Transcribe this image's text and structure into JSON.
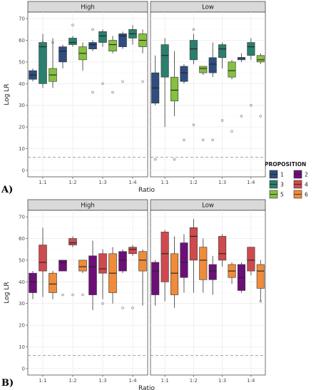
{
  "legend": {
    "title": "PROPOSITION",
    "items": [
      {
        "label": "1",
        "color": "#2f4d80"
      },
      {
        "label": "2",
        "color": "#6d0f78"
      },
      {
        "label": "3",
        "color": "#2a7f6e"
      },
      {
        "label": "4",
        "color": "#cf4a4e"
      },
      {
        "label": "5",
        "color": "#86c03f"
      },
      {
        "label": "6",
        "color": "#ef8b3a"
      }
    ]
  },
  "chart_data": [
    {
      "type": "box",
      "tag": "A)",
      "xlabel": "Ratio",
      "ylabel": "Log LR",
      "ylim": [
        -3,
        73
      ],
      "yticks": [
        0,
        10,
        20,
        30,
        40,
        50,
        60,
        70
      ],
      "categories": [
        "1:1",
        "1:2",
        "1:3",
        "1:4"
      ],
      "reference_line": 6,
      "facets": [
        {
          "label": "High",
          "groups": [
            {
              "category": "1:1",
              "series": "1",
              "min": 41,
              "q1": 42,
              "median": 44,
              "q3": 46,
              "max": 47,
              "outliers": []
            },
            {
              "category": "1:1",
              "series": "3",
              "min": 38,
              "q1": 40,
              "median": 57,
              "q3": 59,
              "max": 63,
              "outliers": [
                59
              ]
            },
            {
              "category": "1:1",
              "series": "5",
              "min": 38,
              "q1": 41,
              "median": 44,
              "q3": 47,
              "max": 61,
              "outliers": [
                59
              ]
            },
            {
              "category": "1:2",
              "series": "1",
              "min": 47,
              "q1": 50,
              "median": 55,
              "q3": 57,
              "max": 58,
              "outliers": []
            },
            {
              "category": "1:2",
              "series": "3",
              "min": 57,
              "q1": 58,
              "median": 59,
              "q3": 61,
              "max": 62,
              "outliers": [
                67
              ]
            },
            {
              "category": "1:2",
              "series": "5",
              "min": 46,
              "q1": 51,
              "median": 54,
              "q3": 57,
              "max": 59,
              "outliers": []
            },
            {
              "category": "1:3",
              "series": "1",
              "min": 55,
              "q1": 56,
              "median": 58,
              "q3": 59,
              "max": 60,
              "outliers": [
                36,
                65
              ]
            },
            {
              "category": "1:3",
              "series": "3",
              "min": 57,
              "q1": 59,
              "median": 62,
              "q3": 64,
              "max": 65,
              "outliers": [
                40
              ]
            },
            {
              "category": "1:3",
              "series": "5",
              "min": 54,
              "q1": 55,
              "median": 58,
              "q3": 60,
              "max": 62,
              "outliers": [
                36
              ]
            },
            {
              "category": "1:4",
              "series": "1",
              "min": 56,
              "q1": 57,
              "median": 62,
              "q3": 63,
              "max": 64,
              "outliers": [
                41
              ]
            },
            {
              "category": "1:4",
              "series": "3",
              "min": 58,
              "q1": 61,
              "median": 63,
              "q3": 65,
              "max": 67,
              "outliers": []
            },
            {
              "category": "1:4",
              "series": "5",
              "min": 54,
              "q1": 57,
              "median": 60,
              "q3": 63,
              "max": 65,
              "outliers": [
                41
              ]
            }
          ]
        },
        {
          "label": "Low",
          "groups": [
            {
              "category": "1:1",
              "series": "1",
              "min": 30,
              "q1": 31,
              "median": 38,
              "q3": 45,
              "max": 53,
              "outliers": [
                5
              ]
            },
            {
              "category": "1:1",
              "series": "3",
              "min": 20,
              "q1": 43,
              "median": 53,
              "q3": 58,
              "max": 61,
              "outliers": []
            },
            {
              "category": "1:1",
              "series": "5",
              "min": 25,
              "q1": 32,
              "median": 37,
              "q3": 43,
              "max": 55,
              "outliers": [
                5
              ]
            },
            {
              "category": "1:2",
              "series": "1",
              "min": 40,
              "q1": 41,
              "median": 45,
              "q3": 48,
              "max": 49,
              "outliers": [
                14
              ]
            },
            {
              "category": "1:2",
              "series": "3",
              "min": 49,
              "q1": 51,
              "median": 56,
              "q3": 60,
              "max": 63,
              "outliers": [
                21,
                65
              ]
            },
            {
              "category": "1:2",
              "series": "5",
              "min": 44,
              "q1": 45,
              "median": 47,
              "q3": 48,
              "max": 48,
              "outliers": [
                14
              ]
            },
            {
              "category": "1:3",
              "series": "1",
              "min": 43,
              "q1": 45,
              "median": 49,
              "q3": 52,
              "max": 59,
              "outliers": [
                14
              ]
            },
            {
              "category": "1:3",
              "series": "3",
              "min": 47,
              "q1": 52,
              "median": 56,
              "q3": 58,
              "max": 59,
              "outliers": [
                23
              ]
            },
            {
              "category": "1:3",
              "series": "5",
              "min": 42,
              "q1": 43,
              "median": 46,
              "q3": 50,
              "max": 51,
              "outliers": [
                18
              ]
            },
            {
              "category": "1:4",
              "series": "1",
              "min": 50,
              "q1": 51,
              "median": 52,
              "q3": 52,
              "max": 54,
              "outliers": [
                25
              ]
            },
            {
              "category": "1:4",
              "series": "3",
              "min": 51,
              "q1": 53,
              "median": 57,
              "q3": 59,
              "max": 61,
              "outliers": [
                30
              ]
            },
            {
              "category": "1:4",
              "series": "5",
              "min": 49,
              "q1": 50,
              "median": 51,
              "q3": 53,
              "max": 54,
              "outliers": [
                25
              ]
            }
          ]
        }
      ]
    },
    {
      "type": "box",
      "tag": "B)",
      "xlabel": "Ratio",
      "ylabel": "Log LR",
      "ylim": [
        -3,
        73
      ],
      "yticks": [
        0,
        10,
        20,
        30,
        40,
        50,
        60,
        70
      ],
      "categories": [
        "1:1",
        "1:2",
        "1:3",
        "1:4"
      ],
      "reference_line": 6,
      "facets": [
        {
          "label": "High",
          "groups": [
            {
              "category": "1:1",
              "series": "2",
              "min": 32,
              "q1": 35,
              "median": 40,
              "q3": 44,
              "max": 45,
              "outliers": []
            },
            {
              "category": "1:1",
              "series": "4",
              "min": 33,
              "q1": 45,
              "median": 49,
              "q3": 57,
              "max": 65,
              "outliers": []
            },
            {
              "category": "1:1",
              "series": "6",
              "min": 32,
              "q1": 35,
              "median": 39,
              "q3": 44,
              "max": 45,
              "outliers": []
            },
            {
              "category": "1:2",
              "series": "2",
              "min": 45,
              "q1": 45,
              "median": 49,
              "q3": 50,
              "max": 50,
              "outliers": [
                34
              ]
            },
            {
              "category": "1:2",
              "series": "4",
              "min": 56,
              "q1": 57,
              "median": 58,
              "q3": 60,
              "max": 61,
              "outliers": [
                34,
                59
              ]
            },
            {
              "category": "1:2",
              "series": "6",
              "min": 44,
              "q1": 45,
              "median": 47,
              "q3": 50,
              "max": 50,
              "outliers": [
                34
              ]
            },
            {
              "category": "1:3",
              "series": "2",
              "min": 27,
              "q1": 34,
              "median": 47,
              "q3": 52,
              "max": 59,
              "outliers": []
            },
            {
              "category": "1:3",
              "series": "4",
              "min": 32,
              "q1": 44,
              "median": 46,
              "q3": 53,
              "max": 55,
              "outliers": [
                30
              ]
            },
            {
              "category": "1:3",
              "series": "6",
              "min": 30,
              "q1": 35,
              "median": 44,
              "q3": 53,
              "max": 56,
              "outliers": []
            },
            {
              "category": "1:4",
              "series": "2",
              "min": 44,
              "q1": 45,
              "median": 50,
              "q3": 54,
              "max": 55,
              "outliers": [
                28
              ]
            },
            {
              "category": "1:4",
              "series": "4",
              "min": 52,
              "q1": 53,
              "median": 55,
              "q3": 56,
              "max": 57,
              "outliers": [
                28
              ]
            },
            {
              "category": "1:4",
              "series": "6",
              "min": 29,
              "q1": 45,
              "median": 50,
              "q3": 54,
              "max": 55,
              "outliers": []
            }
          ]
        },
        {
          "label": "Low",
          "groups": [
            {
              "category": "1:1",
              "series": "2",
              "min": 29,
              "q1": 34,
              "median": 45,
              "q3": 49,
              "max": 50,
              "outliers": []
            },
            {
              "category": "1:1",
              "series": "4",
              "min": 31,
              "q1": 40,
              "median": 53,
              "q3": 63,
              "max": 64,
              "outliers": []
            },
            {
              "category": "1:1",
              "series": "6",
              "min": 28,
              "q1": 34,
              "median": 44,
              "q3": 53,
              "max": 61,
              "outliers": []
            },
            {
              "category": "1:2",
              "series": "2",
              "min": 35,
              "q1": 42,
              "median": 49,
              "q3": 58,
              "max": 62,
              "outliers": []
            },
            {
              "category": "1:2",
              "series": "4",
              "min": 35,
              "q1": 50,
              "median": 61,
              "q3": 65,
              "max": 69,
              "outliers": []
            },
            {
              "category": "1:2",
              "series": "6",
              "min": 35,
              "q1": 41,
              "median": 50,
              "q3": 56,
              "max": 60,
              "outliers": []
            },
            {
              "category": "1:3",
              "series": "2",
              "min": 34,
              "q1": 41,
              "median": 45,
              "q3": 48,
              "max": 52,
              "outliers": []
            },
            {
              "category": "1:3",
              "series": "4",
              "min": 47,
              "q1": 50,
              "median": 53,
              "q3": 61,
              "max": 62,
              "outliers": []
            },
            {
              "category": "1:3",
              "series": "6",
              "min": 39,
              "q1": 42,
              "median": 45,
              "q3": 48,
              "max": 49,
              "outliers": []
            },
            {
              "category": "1:4",
              "series": "2",
              "min": 35,
              "q1": 36,
              "median": 42,
              "q3": 48,
              "max": 49,
              "outliers": []
            },
            {
              "category": "1:4",
              "series": "4",
              "min": 43,
              "q1": 45,
              "median": 50,
              "q3": 56,
              "max": 56,
              "outliers": []
            },
            {
              "category": "1:4",
              "series": "6",
              "min": 31,
              "q1": 37,
              "median": 45,
              "q3": 48,
              "max": 50,
              "outliers": [
                31
              ]
            }
          ]
        }
      ]
    }
  ]
}
